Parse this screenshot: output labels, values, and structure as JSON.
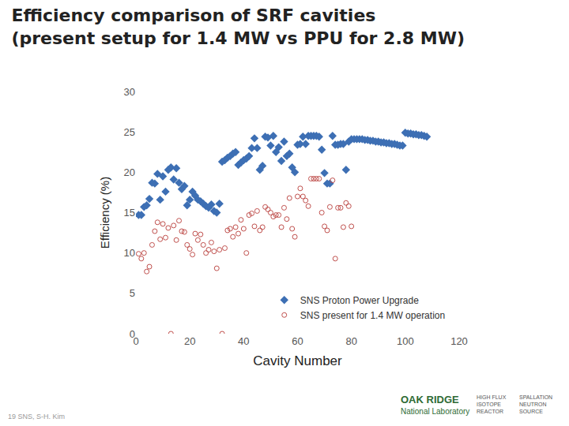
{
  "chart_data": {
    "type": "scatter",
    "title": "Efficiency comparison of SRF cavities\n(present setup for 1.4 MW vs PPU for 2.8 MW)",
    "x_label": "Cavity Number",
    "y_label": "Efficiency (%)",
    "xlim": [
      0,
      120
    ],
    "xticks": [
      0,
      20,
      40,
      60,
      80,
      100,
      120
    ],
    "ylim": [
      0,
      30
    ],
    "yticks": [
      0,
      5,
      10,
      15,
      20,
      25,
      30
    ],
    "grid": false,
    "legend": "lower right",
    "annotations": [
      "19 SNS, S-H. Kim",
      "OAK RIDGE",
      "National Laboratory",
      "HIGH FLUX\nISOTOPE\nREACTOR",
      "SPALLATION\nNEUTRON\nSOURCE"
    ],
    "series": [
      {
        "name": "SNS Proton Power Upgrade",
        "color": "#3d6fb4",
        "marker": "diamond",
        "x": [
          1,
          2,
          3,
          4,
          5,
          6,
          7,
          8,
          9,
          10,
          11,
          12,
          13,
          14,
          15,
          16,
          17,
          18,
          19,
          20,
          21,
          22,
          23,
          24,
          25,
          26,
          27,
          28,
          29,
          30,
          31,
          32,
          33,
          34,
          35,
          36,
          37,
          38,
          39,
          40,
          41,
          42,
          43,
          44,
          45,
          46,
          47,
          48,
          49,
          50,
          51,
          52,
          53,
          54,
          55,
          56,
          57,
          58,
          59,
          60,
          61,
          62,
          63,
          64,
          65,
          66,
          67,
          68,
          69,
          70,
          71,
          72,
          73,
          74,
          75,
          76,
          77,
          78,
          79,
          80,
          81,
          82,
          83,
          84,
          85,
          86,
          87,
          88,
          89,
          90,
          91,
          92,
          93,
          94,
          95,
          96,
          97,
          98,
          99,
          100,
          101,
          102,
          103,
          104,
          105,
          106,
          107,
          108
        ],
        "values": [
          14.7,
          14.7,
          15.7,
          15.9,
          16.7,
          18.7,
          18.6,
          19.8,
          16.6,
          19.5,
          17.6,
          20.3,
          20.6,
          19.1,
          20.5,
          18.7,
          17.9,
          18.3,
          15.9,
          16.6,
          17.6,
          17.1,
          16.6,
          16.4,
          16.1,
          15.8,
          15.6,
          16.0,
          15.2,
          15.0,
          16.1,
          21.3,
          21.5,
          21.8,
          22.0,
          22.3,
          22.5,
          20.9,
          21.2,
          21.5,
          21.7,
          22.0,
          23.0,
          24.2,
          23.0,
          20.3,
          20.8,
          24.4,
          24.3,
          23.3,
          24.5,
          22.5,
          23.1,
          21.4,
          23.8,
          22.0,
          22.3,
          20.6,
          20.0,
          23.4,
          23.5,
          24.4,
          23.5,
          24.5,
          24.5,
          24.5,
          24.5,
          24.4,
          22.8,
          19.9,
          18.6,
          18.6,
          24.5,
          23.4,
          23.4,
          23.5,
          23.5,
          20.3,
          23.8,
          24.1,
          24.1,
          24.1,
          24.1,
          24.1,
          24.0,
          24.0,
          23.9,
          23.9,
          23.8,
          23.8,
          23.7,
          23.7,
          23.6,
          23.6,
          23.5,
          23.5,
          23.4,
          23.3,
          23.3,
          24.9,
          24.8,
          24.8,
          24.7,
          24.7,
          24.6,
          24.6,
          24.5,
          24.4
        ]
      },
      {
        "name": "SNS present for 1.4 MW operation",
        "color": "#c0504d",
        "marker": "circle-open",
        "x": [
          1,
          2,
          3,
          4,
          5,
          6,
          7,
          8,
          9,
          10,
          11,
          12,
          13,
          14,
          15,
          16,
          17,
          18,
          19,
          20,
          21,
          22,
          23,
          24,
          25,
          26,
          27,
          28,
          29,
          30,
          31,
          32,
          33,
          34,
          35,
          36,
          37,
          38,
          39,
          40,
          41,
          42,
          43,
          44,
          45,
          46,
          47,
          48,
          49,
          50,
          51,
          52,
          53,
          54,
          55,
          56,
          57,
          58,
          59,
          60,
          61,
          62,
          63,
          64,
          65,
          66,
          67,
          68,
          69,
          70,
          71,
          72,
          73,
          74,
          75,
          76,
          77,
          78,
          79,
          80
        ],
        "values": [
          9.9,
          9.3,
          10.0,
          7.7,
          8.3,
          11.0,
          12.7,
          13.8,
          11.7,
          13.6,
          11.9,
          13.1,
          0,
          13.4,
          11.6,
          14.0,
          12.7,
          12.6,
          11.0,
          10.5,
          9.8,
          12.4,
          11.6,
          12.3,
          11.0,
          10.0,
          10.4,
          11.3,
          10.2,
          8.1,
          10.4,
          0,
          10.6,
          12.8,
          13.0,
          12.0,
          13.2,
          12.4,
          14.1,
          13.0,
          10.0,
          14.7,
          14.9,
          13.3,
          15.2,
          12.8,
          13.2,
          15.7,
          15.4,
          15.0,
          14.5,
          14.7,
          14.7,
          13.2,
          15.6,
          14.2,
          16.8,
          13.0,
          12.0,
          17.0,
          18.0,
          17.0,
          16.5,
          15.8,
          19.2,
          19.2,
          19.2,
          19.2,
          15.0,
          13.3,
          12.8,
          15.7,
          19.0,
          9.3,
          15.6,
          15.6,
          13.2,
          16.2,
          15.8,
          13.3
        ]
      }
    ]
  }
}
